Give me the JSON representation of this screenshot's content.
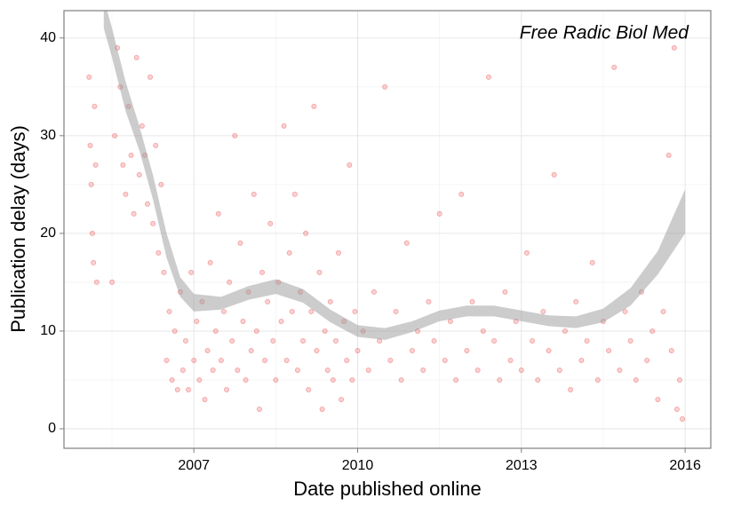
{
  "chart_data": {
    "type": "scatter",
    "annotation": "Free Radic Biol Med",
    "x_label": "Date published online",
    "y_label": "Publication delay (days)",
    "xlim": [
      2004.62,
      2016.47
    ],
    "ylim": [
      -2,
      42.8
    ],
    "xticks": [
      2007,
      2010,
      2013,
      2016
    ],
    "yticks": [
      0,
      10,
      20,
      30,
      40
    ],
    "x_minor_ticks": [
      2005.5,
      2008.5,
      2011.5,
      2014.5
    ],
    "y_minor_ticks": [
      5,
      15,
      25,
      35
    ],
    "grid": true,
    "color": "#e41a1c",
    "x": [
      2005.08,
      2005.1,
      2005.12,
      2005.14,
      2005.16,
      2005.18,
      2005.2,
      2005.22,
      2005.5,
      2005.55,
      2005.6,
      2005.65,
      2005.7,
      2005.75,
      2005.8,
      2005.85,
      2005.9,
      2005.95,
      2006.0,
      2006.05,
      2006.1,
      2006.15,
      2006.2,
      2006.25,
      2006.3,
      2006.35,
      2006.4,
      2006.45,
      2006.5,
      2006.55,
      2006.6,
      2006.65,
      2006.7,
      2006.75,
      2006.8,
      2006.85,
      2006.9,
      2006.95,
      2007.0,
      2007.05,
      2007.1,
      2007.15,
      2007.2,
      2007.25,
      2007.3,
      2007.35,
      2007.4,
      2007.45,
      2007.5,
      2007.55,
      2007.6,
      2007.65,
      2007.7,
      2007.75,
      2007.8,
      2007.85,
      2007.9,
      2007.95,
      2008.0,
      2008.05,
      2008.1,
      2008.15,
      2008.2,
      2008.25,
      2008.3,
      2008.35,
      2008.4,
      2008.45,
      2008.5,
      2008.55,
      2008.6,
      2008.65,
      2008.7,
      2008.75,
      2008.8,
      2008.85,
      2008.9,
      2008.95,
      2009.0,
      2009.05,
      2009.1,
      2009.15,
      2009.2,
      2009.25,
      2009.3,
      2009.35,
      2009.4,
      2009.45,
      2009.5,
      2009.55,
      2009.6,
      2009.65,
      2009.7,
      2009.75,
      2009.8,
      2009.85,
      2009.9,
      2009.95,
      2010.0,
      2010.1,
      2010.2,
      2010.3,
      2010.4,
      2010.5,
      2010.6,
      2010.7,
      2010.8,
      2010.9,
      2011.0,
      2011.1,
      2011.2,
      2011.3,
      2011.4,
      2011.5,
      2011.6,
      2011.7,
      2011.8,
      2011.9,
      2012.0,
      2012.1,
      2012.2,
      2012.3,
      2012.4,
      2012.5,
      2012.6,
      2012.7,
      2012.8,
      2012.9,
      2013.0,
      2013.1,
      2013.2,
      2013.3,
      2013.4,
      2013.5,
      2013.6,
      2013.7,
      2013.8,
      2013.9,
      2014.0,
      2014.1,
      2014.2,
      2014.3,
      2014.4,
      2014.5,
      2014.6,
      2014.7,
      2014.8,
      2014.9,
      2015.0,
      2015.1,
      2015.2,
      2015.3,
      2015.4,
      2015.5,
      2015.6,
      2015.7,
      2015.75,
      2015.8,
      2015.85,
      2015.9,
      2015.95
    ],
    "y": [
      36,
      29,
      25,
      20,
      17,
      33,
      27,
      15,
      15,
      30,
      39,
      35,
      27,
      24,
      33,
      28,
      22,
      38,
      26,
      31,
      28,
      23,
      36,
      21,
      29,
      18,
      25,
      16,
      7,
      12,
      5,
      10,
      4,
      14,
      6,
      9,
      4,
      16,
      7,
      11,
      5,
      13,
      3,
      8,
      17,
      6,
      10,
      22,
      7,
      12,
      4,
      15,
      9,
      30,
      6,
      19,
      11,
      5,
      14,
      8,
      24,
      10,
      2,
      16,
      7,
      13,
      21,
      9,
      5,
      15,
      11,
      31,
      7,
      18,
      12,
      24,
      6,
      14,
      9,
      20,
      4,
      12,
      33,
      8,
      16,
      2,
      10,
      6,
      13,
      5,
      9,
      18,
      3,
      11,
      7,
      27,
      5,
      12,
      8,
      10,
      6,
      14,
      9,
      35,
      7,
      12,
      5,
      19,
      8,
      10,
      6,
      13,
      9,
      22,
      7,
      11,
      5,
      24,
      8,
      13,
      6,
      10,
      36,
      9,
      5,
      14,
      7,
      11,
      6,
      18,
      9,
      5,
      12,
      8,
      26,
      6,
      10,
      4,
      13,
      7,
      9,
      17,
      5,
      11,
      8,
      37,
      6,
      12,
      9,
      5,
      14,
      7,
      10,
      3,
      12,
      28,
      8,
      39,
      2,
      5,
      1
    ],
    "band": {
      "x": [
        2005.35,
        2005.5,
        2005.75,
        2006.0,
        2006.25,
        2006.5,
        2006.75,
        2007.0,
        2007.5,
        2008.0,
        2008.5,
        2009.0,
        2009.5,
        2010.0,
        2010.5,
        2011.0,
        2011.5,
        2012.0,
        2012.5,
        2013.0,
        2013.5,
        2014.0,
        2014.5,
        2015.0,
        2015.5,
        2016.0
      ],
      "upper": [
        44,
        41,
        35.5,
        31,
        26,
        20,
        15.5,
        13.8,
        13.5,
        14.6,
        15.3,
        14.3,
        12.2,
        10.6,
        10.3,
        11,
        12.1,
        12.6,
        12.6,
        12.1,
        11.6,
        11.5,
        12.3,
        14.4,
        18.2,
        24.5
      ],
      "lower": [
        41,
        38,
        32.5,
        28.5,
        23.5,
        17.5,
        13.5,
        12,
        12.2,
        13.2,
        13.8,
        12.9,
        10.9,
        9.4,
        9.1,
        9.9,
        11,
        11.5,
        11.5,
        11,
        10.5,
        10.3,
        10.9,
        12.6,
        15.8,
        20
      ]
    }
  }
}
